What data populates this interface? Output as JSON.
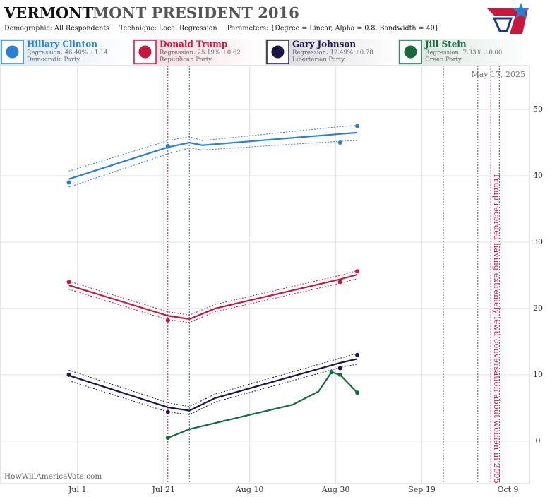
{
  "header": {
    "state": "VERMONT",
    "title": "MONT PRESIDENT 2016",
    "params": [
      {
        "label": "Demographic:",
        "value": "All Respondents"
      },
      {
        "label": "Technique:",
        "value": "Local Regression"
      },
      {
        "label": "Parameters:",
        "value": "{Degree = Linear, Alpha = 0.8, Bandwidth = 40}"
      }
    ]
  },
  "chart_data": {
    "type": "line",
    "date": "May 17, 2025",
    "source": "HowWillAmericaVote.com",
    "xlim": [
      "06-13",
      "10-14"
    ],
    "xticks": [
      {
        "value": "07-01",
        "label": "Jul 1"
      },
      {
        "value": "07-21",
        "label": "Jul 21"
      },
      {
        "value": "08-10",
        "label": "Aug 10"
      },
      {
        "value": "08-30",
        "label": "Aug 30"
      },
      {
        "value": "09-19",
        "label": "Sep 19"
      },
      {
        "value": "10-09",
        "label": "Oct 9"
      }
    ],
    "ylim": [
      -6.4,
      56.6
    ],
    "yticks": [
      0,
      10,
      20,
      30,
      40,
      50
    ],
    "grid": true,
    "events": [
      {
        "x": "07-22",
        "color": "#c8195a"
      },
      {
        "x": "07-27",
        "color": "#1a6fa0"
      },
      {
        "x": "09-24",
        "color": "#555555"
      },
      {
        "x": "10-02",
        "color": "#555555"
      },
      {
        "x": "10-05",
        "color": "#c8195a",
        "label": "Trump recorded having extremely lewd conversation about women in 2005"
      },
      {
        "x": "10-07",
        "color": "#555555"
      }
    ],
    "series": [
      {
        "name": "Hillary Clinton",
        "color": "#2a7fd6",
        "regression": "Regression: 46.40% ±1.14",
        "party": "Democratic Party",
        "x": [
          "06-29",
          "07-22",
          "08-31",
          "09-04"
        ],
        "values": [
          39,
          44.5,
          45,
          47.5
        ],
        "trend_x": [
          "06-29",
          "07-22",
          "07-27",
          "07-30",
          "08-31",
          "09-04"
        ],
        "trend": [
          39.5,
          44.3,
          45,
          44.6,
          46.3,
          46.5
        ],
        "trend_low": [
          38.3,
          43.3,
          44.2,
          43.9,
          45.2,
          45.3
        ],
        "trend_high": [
          40.7,
          45.3,
          45.9,
          45.3,
          47.4,
          47.6
        ]
      },
      {
        "name": "Donald Trump",
        "color": "#c8193c",
        "regression": "Regression: 25.19% ±0.62",
        "party": "Republican Party",
        "x": [
          "06-29",
          "07-22",
          "08-31",
          "09-04"
        ],
        "values": [
          24,
          18.2,
          24,
          25.6
        ],
        "trend_x": [
          "06-29",
          "07-22",
          "07-27",
          "08-02",
          "08-31",
          "09-04"
        ],
        "trend": [
          23.5,
          18.9,
          18.4,
          20,
          24.4,
          25.1
        ],
        "trend_low": [
          22.9,
          18.3,
          17.9,
          19.5,
          23.8,
          24.5
        ],
        "trend_high": [
          24.1,
          19.5,
          19,
          20.6,
          25,
          25.7
        ]
      },
      {
        "name": "Gary Johnson",
        "color": "#1b1446",
        "regression": "Regression: 12.49% ±0.78",
        "party": "Libertarian Party",
        "x": [
          "06-29",
          "07-22",
          "08-31",
          "09-04"
        ],
        "values": [
          10,
          4.4,
          11,
          13
        ],
        "trend_x": [
          "06-29",
          "07-22",
          "07-27",
          "08-02",
          "08-31",
          "09-04"
        ],
        "trend": [
          9.9,
          5.1,
          4.6,
          6.5,
          11.8,
          12.4
        ],
        "trend_low": [
          9.1,
          4.4,
          4,
          5.9,
          11.1,
          11.6
        ],
        "trend_high": [
          10.7,
          5.8,
          5.2,
          7.1,
          12.5,
          13.2
        ]
      },
      {
        "name": "Jill Stein",
        "color": "#166b3e",
        "regression": "Regression: 7.33% ±0.00",
        "party": "Green Party",
        "x": [
          "07-22",
          "08-29",
          "08-31",
          "09-04"
        ],
        "values": [
          0.5,
          10.4,
          10,
          7.3
        ],
        "trend_x": [
          "07-22",
          "07-27",
          "08-20",
          "08-26",
          "08-29",
          "08-31",
          "09-04"
        ],
        "trend": [
          0.5,
          1.8,
          5.5,
          7.5,
          10.4,
          10,
          7.3
        ]
      }
    ]
  }
}
